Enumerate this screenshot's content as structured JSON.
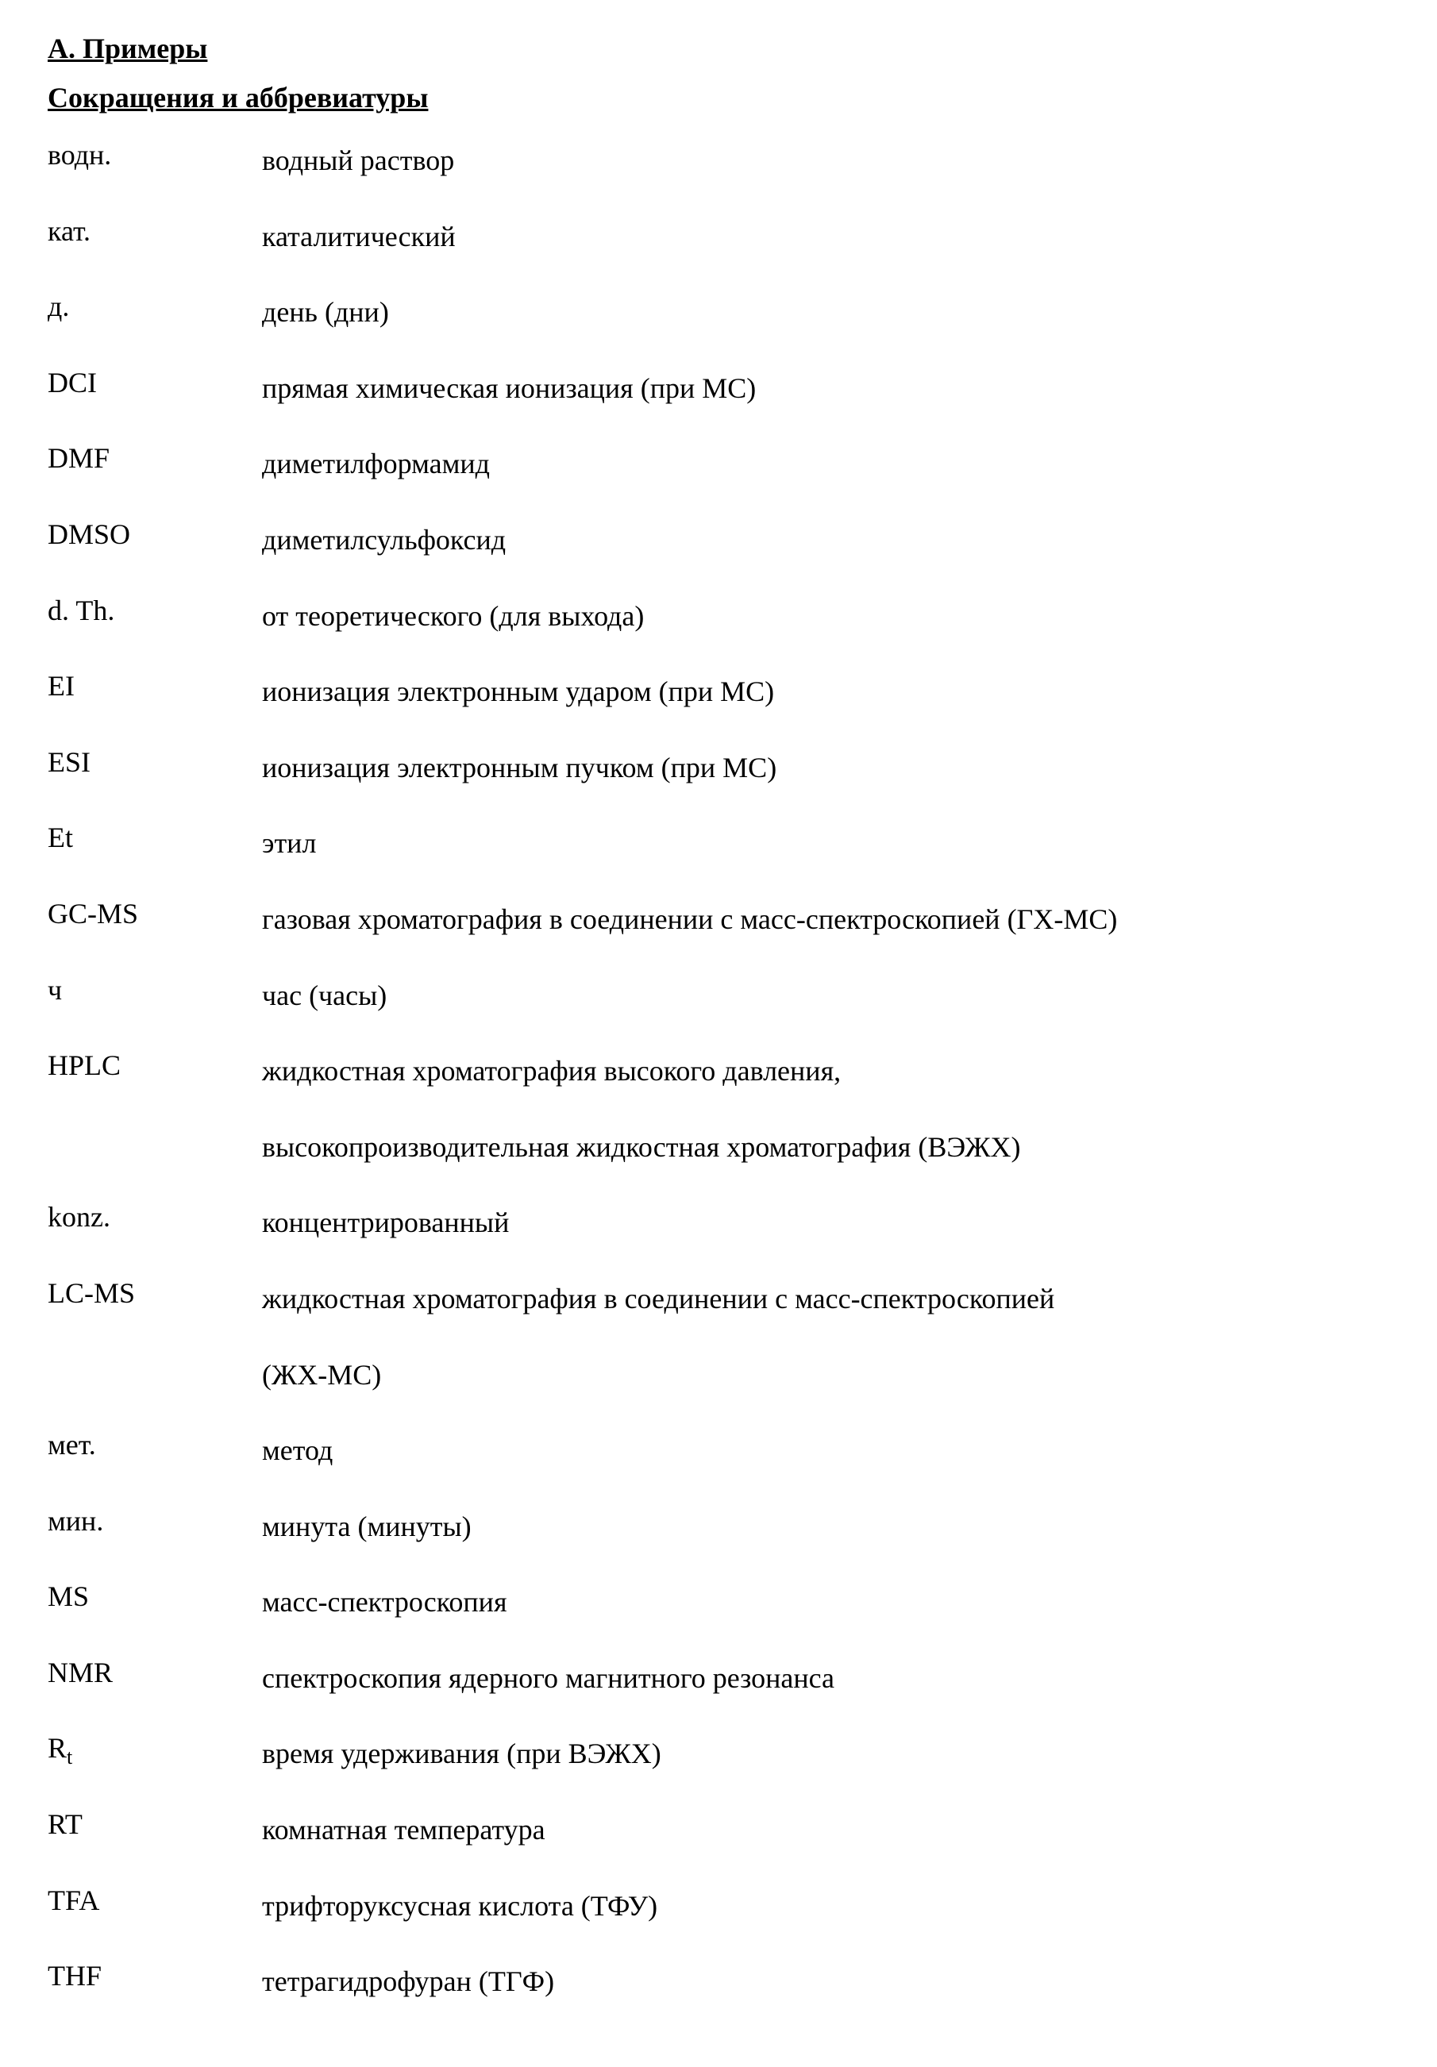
{
  "heading": "А. Примеры",
  "subheading": "Сокращения и аббревиатуры",
  "abbreviations": [
    {
      "term": "водн.",
      "definition": "водный раствор"
    },
    {
      "term": "кат.",
      "definition": "каталитический"
    },
    {
      "term": "д.",
      "definition": "день (дни)"
    },
    {
      "term": "DCI",
      "definition": "прямая химическая ионизация (при МС)"
    },
    {
      "term": "DMF",
      "definition": "диметилформамид"
    },
    {
      "term": "DMSO",
      "definition": "диметилсульфоксид"
    },
    {
      "term": "d. Th.",
      "definition": "от теоретического (для выхода)"
    },
    {
      "term": "EI",
      "definition": "ионизация электронным ударом (при МС)"
    },
    {
      "term": "ESI",
      "definition": "ионизация электронным пучком (при МС)"
    },
    {
      "term": "Et",
      "definition": "этил"
    },
    {
      "term": "GC-MS",
      "definition": "газовая хроматография в соединении с масс-спектроскопией (ГХ-МС)"
    },
    {
      "term": "ч",
      "definition": "час (часы)"
    },
    {
      "term": "HPLC",
      "definition": "жидкостная хроматография высокого давления, высокопроизводительная жидкостная хроматография (ВЭЖХ)",
      "multiline": true,
      "line1": "жидкостная хроматография высокого давления,",
      "line2": "высокопроизводительная жидкостная хроматография (ВЭЖХ)"
    },
    {
      "term": "konz.",
      "definition": "концентрированный"
    },
    {
      "term": "LC-MS",
      "definition": "жидкостная хроматография в соединении с масс-спектроскопией (ЖХ-МС)",
      "multiline": true,
      "line1": "жидкостная хроматография в соединении с масс-спектроскопией",
      "line2": "(ЖХ-МС)"
    },
    {
      "term": "мет.",
      "definition": "метод"
    },
    {
      "term": "мин.",
      "definition": "минута (минуты)"
    },
    {
      "term": "MS",
      "definition": "масс-спектроскопия"
    },
    {
      "term": "NMR",
      "definition": "спектроскопия ядерного магнитного резонанса"
    },
    {
      "term": "R",
      "term_sub": "t",
      "definition": "время удерживания (при ВЭЖХ)"
    },
    {
      "term": "RT",
      "definition": "комнатная температура"
    },
    {
      "term": "TFA",
      "definition": "трифторуксусная кислота (ТФУ)"
    },
    {
      "term": "THF",
      "definition": "тетрагидрофуран (ТГФ)"
    }
  ],
  "styling": {
    "background_color": "#ffffff",
    "text_color": "#000000",
    "font_family": "Times New Roman",
    "heading_fontsize": 36,
    "body_fontsize": 36,
    "term_column_width": 270,
    "row_spacing": 38,
    "heading_weight": "bold",
    "heading_decoration": "underline"
  }
}
